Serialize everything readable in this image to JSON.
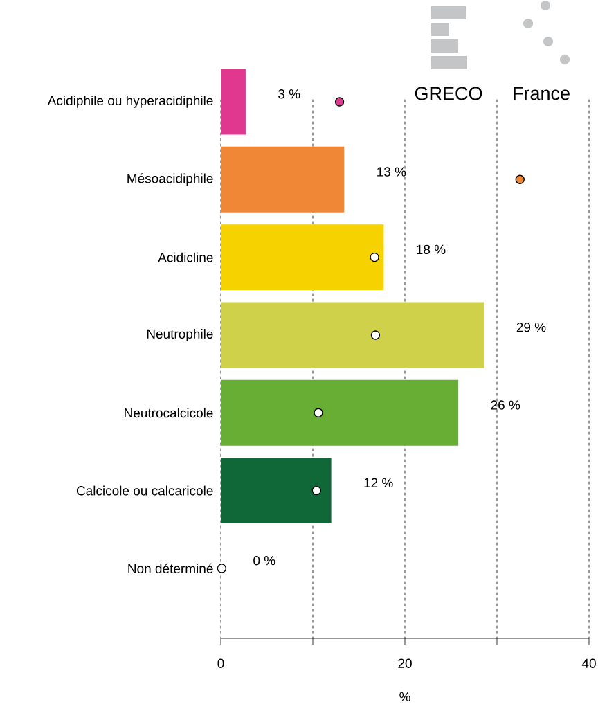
{
  "chart_data": {
    "type": "bar",
    "orientation": "horizontal",
    "xlabel": "%",
    "categories": [
      "Acidiphile ou hyperacidiphile",
      "Mésoacidiphile",
      "Acidicline",
      "Neutrophile",
      "Neutrocalcicole",
      "Calcicole ou calcaricole",
      "Non déterminé"
    ],
    "series": [
      {
        "name": "GRECO",
        "colors": [
          "#e0388f",
          "#f08736",
          "#f6d200",
          "#cfd14a",
          "#68ae34",
          "#106838",
          "#ffffff"
        ],
        "values": [
          2.7,
          13.4,
          17.7,
          28.6,
          25.8,
          12.0,
          0
        ],
        "value_labels": [
          "3 %",
          "13 %",
          "18 %",
          "29 %",
          "26 %",
          "12 %",
          "0 %"
        ]
      },
      {
        "name": "France",
        "type": "scatter",
        "marker": "circle",
        "colors": [
          "#e0388f",
          "#f08736",
          "#ffffff",
          "#ffffff",
          "#ffffff",
          "#ffffff",
          "#ffffff"
        ],
        "values": [
          12.9,
          32.5,
          16.7,
          16.8,
          10.6,
          10.4,
          0.1
        ]
      }
    ],
    "xlim": [
      0,
      40
    ],
    "xticks": [
      0,
      {
        "value": 10,
        "label": null
      },
      20,
      {
        "value": 30,
        "label": null
      },
      40
    ],
    "grid": "x",
    "legend": "top right"
  }
}
